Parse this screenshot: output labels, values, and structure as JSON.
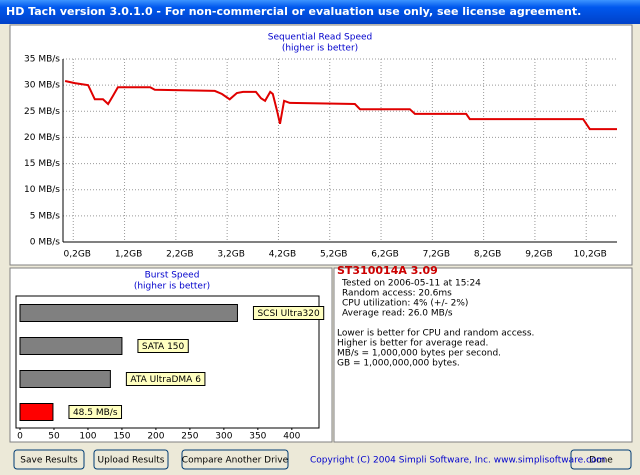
{
  "window": {
    "title": "HD Tach version 3.0.1.0  - For non-commercial or evaluation use only, see license agreement."
  },
  "chart_data": [
    {
      "type": "line",
      "title": "Sequential Read Speed",
      "subtitle": "(higher is better)",
      "xlim": [
        0,
        10.8
      ],
      "xticks": [
        {
          "value": 0.2,
          "label": "0,2GB"
        },
        {
          "value": 1.2,
          "label": "1,2GB"
        },
        {
          "value": 2.2,
          "label": "2,2GB"
        },
        {
          "value": 3.2,
          "label": "3,2GB"
        },
        {
          "value": 4.2,
          "label": "4,2GB"
        },
        {
          "value": 5.2,
          "label": "5,2GB"
        },
        {
          "value": 6.2,
          "label": "6,2GB"
        },
        {
          "value": 7.2,
          "label": "7,2GB"
        },
        {
          "value": 8.2,
          "label": "8,2GB"
        },
        {
          "value": 9.2,
          "label": "9,2GB"
        },
        {
          "value": 10.2,
          "label": "10,2GB"
        }
      ],
      "ylim": [
        0,
        35
      ],
      "yticks": [
        {
          "value": 0,
          "label": "0 MB/s"
        },
        {
          "value": 5,
          "label": "5 MB/s"
        },
        {
          "value": 10,
          "label": "10 MB/s"
        },
        {
          "value": 15,
          "label": "15 MB/s"
        },
        {
          "value": 20,
          "label": "20 MB/s"
        },
        {
          "value": 25,
          "label": "25 MB/s"
        },
        {
          "value": 30,
          "label": "30 MB/s"
        },
        {
          "value": 35,
          "label": "35 MB/s"
        }
      ],
      "grid": true,
      "color": "#e00000",
      "x": [
        0.04,
        0.23,
        0.49,
        0.62,
        0.78,
        0.88,
        0.97,
        1.07,
        1.7,
        1.79,
        2.96,
        3.1,
        3.25,
        3.39,
        3.51,
        3.76,
        3.86,
        3.94,
        4.04,
        4.09,
        4.17,
        4.23,
        4.31,
        4.42,
        5.69,
        5.79,
        6.76,
        6.86,
        7.86,
        7.93,
        10.14,
        10.27,
        10.8
      ],
      "values": [
        30.8,
        30.4,
        30.0,
        27.3,
        27.3,
        26.4,
        27.9,
        29.6,
        29.6,
        29.1,
        28.9,
        28.3,
        27.3,
        28.5,
        28.7,
        28.7,
        27.5,
        27.0,
        28.7,
        28.3,
        25.2,
        22.6,
        27.0,
        26.6,
        26.4,
        25.4,
        25.4,
        24.5,
        24.5,
        23.5,
        23.5,
        21.6,
        21.6
      ]
    },
    {
      "type": "hbar",
      "title": "Burst Speed",
      "subtitle": "(higher is better)",
      "categories": [
        "SCSI Ultra320",
        "SATA 150",
        "ATA UltraDMA 6",
        null
      ],
      "values": [
        320,
        150,
        133,
        48.5
      ],
      "value_labels": [
        null,
        null,
        null,
        "48.5 MB/s"
      ],
      "colors": [
        "#808080",
        "#808080",
        "#808080",
        "#ff0000"
      ],
      "xlim": [
        0,
        440
      ],
      "xticks": [
        0,
        50,
        100,
        150,
        200,
        250,
        300,
        350,
        400
      ]
    }
  ],
  "info": {
    "title": "ST310014A 3.09",
    "lines": [
      "Tested on 2006-05-11 at 15:24",
      "Random access: 20.6ms",
      "CPU utilization: 4% (+/- 2%)",
      "Average read: 26.0 MB/s"
    ],
    "notes": [
      "Lower is better for CPU and random access.",
      "Higher is better for average read.",
      "MB/s = 1,000,000 bytes per second.",
      "GB = 1,000,000,000 bytes."
    ]
  },
  "buttons": [
    "Save Results",
    "Upload Results",
    "Compare Another Drive",
    "Done"
  ],
  "copyright": "Copyright (C) 2004 Simpli Software, Inc. www.simplisoftware.com"
}
